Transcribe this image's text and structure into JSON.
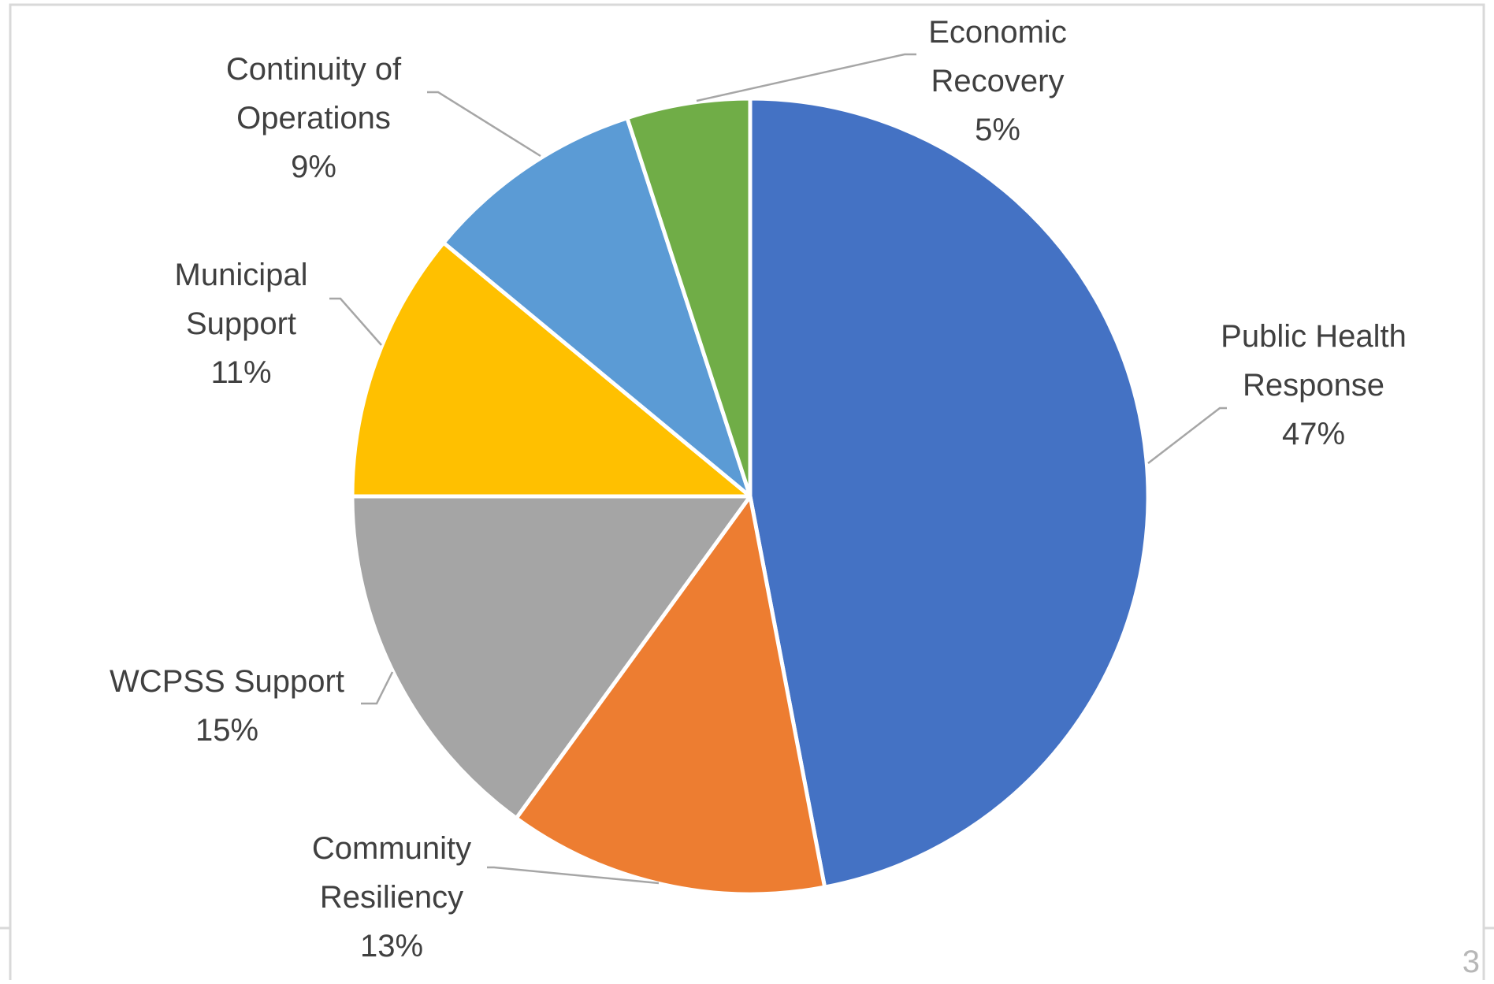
{
  "chart_data": {
    "type": "pie",
    "title": "",
    "start_angle_deg": 0,
    "direction": "clockwise",
    "categories": [
      "Public Health Response",
      "Community Resiliency",
      "WCPSS Support",
      "Municipal Support",
      "Continuity of Operations",
      "Economic Recovery"
    ],
    "values": [
      47,
      13,
      15,
      11,
      9,
      5
    ],
    "percent_labels": [
      "47%",
      "13%",
      "15%",
      "11%",
      "9%",
      "5%"
    ],
    "label_lines": [
      [
        "Public Health",
        "Response"
      ],
      [
        "Community",
        "Resiliency"
      ],
      [
        "WCPSS Support"
      ],
      [
        "Municipal",
        "Support"
      ],
      [
        "Continuity of",
        "Operations"
      ],
      [
        "Economic",
        "Recovery"
      ]
    ],
    "colors": [
      "#4472C4",
      "#ED7D31",
      "#A5A5A5",
      "#FFC000",
      "#5B9BD5",
      "#70AD47"
    ],
    "legend": "none",
    "data_labels": "outside-with-leader-lines"
  },
  "page": {
    "number": "3"
  }
}
